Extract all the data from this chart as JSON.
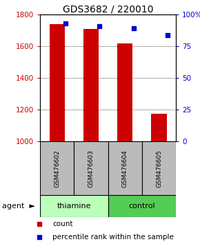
{
  "title": "GDS3682 / 220010",
  "samples": [
    "GSM476602",
    "GSM476603",
    "GSM476604",
    "GSM476605"
  ],
  "count_values": [
    1740,
    1710,
    1620,
    1175
  ],
  "percentile_values": [
    93,
    91,
    89,
    84
  ],
  "ylim_left": [
    1000,
    1800
  ],
  "ylim_right": [
    0,
    100
  ],
  "yticks_left": [
    1000,
    1200,
    1400,
    1600,
    1800
  ],
  "yticks_right": [
    0,
    25,
    50,
    75,
    100
  ],
  "bar_color": "#cc0000",
  "dot_color": "#0000cc",
  "groups": [
    {
      "label": "thiamine",
      "samples": [
        0,
        1
      ],
      "color": "#bbffbb"
    },
    {
      "label": "control",
      "samples": [
        2,
        3
      ],
      "color": "#55cc55"
    }
  ],
  "label_bg": "#bbbbbb",
  "grid_linestyle": "dotted"
}
